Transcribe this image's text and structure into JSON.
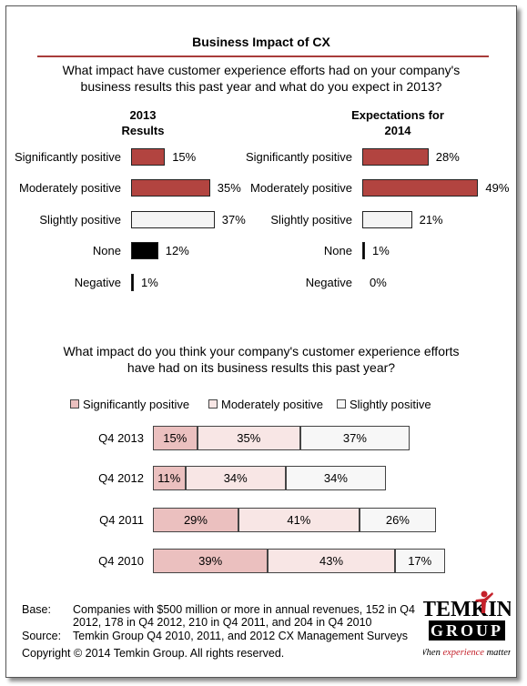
{
  "title": "Business Impact of CX",
  "question1_lines": [
    "What impact have customer experience efforts had on your company's",
    "business results this past year and what do you expect in 2013?"
  ],
  "question2_lines": [
    "What impact do you think your company's customer experience efforts",
    "have had on its business results this past year?"
  ],
  "colors": {
    "significant": "#b24440",
    "moderate": "#b24440",
    "slight": "#f4f4f4",
    "none": "#000000",
    "negative": "#000000",
    "stack_significant": "#ebc0bf",
    "stack_moderate": "#f8e6e5",
    "stack_slight": "#f7f7f7",
    "rule": "#a83c3a"
  },
  "chart_data": [
    {
      "type": "bar",
      "orientation": "horizontal",
      "title_lines": [
        "2013",
        "Results"
      ],
      "categories": [
        "Significantly positive",
        "Moderately positive",
        "Slightly positive",
        "None",
        "Negative"
      ],
      "values": [
        15,
        35,
        37,
        12,
        1
      ],
      "value_labels": [
        "15%",
        "35%",
        "37%",
        "12%",
        "1%"
      ],
      "unit": "%",
      "xlim": [
        0,
        40
      ]
    },
    {
      "type": "bar",
      "orientation": "horizontal",
      "title_lines": [
        "Expectations for",
        "2014"
      ],
      "categories": [
        "Significantly positive",
        "Moderately positive",
        "Slightly positive",
        "None",
        "Negative"
      ],
      "values": [
        28,
        49,
        21,
        1,
        0
      ],
      "value_labels": [
        "28%",
        "49%",
        "21%",
        "1%",
        "0%"
      ],
      "unit": "%",
      "xlim": [
        0,
        49
      ]
    },
    {
      "type": "bar",
      "orientation": "horizontal",
      "stacked": true,
      "categories": [
        "Q4 2013",
        "Q4 2012",
        "Q4 2011",
        "Q4 2010"
      ],
      "series": [
        {
          "name": "Significantly positive",
          "values": [
            15,
            11,
            29,
            39
          ],
          "labels": [
            "15%",
            "11%",
            "29%",
            "39%"
          ]
        },
        {
          "name": "Moderately positive",
          "values": [
            35,
            34,
            41,
            43
          ],
          "labels": [
            "35%",
            "34%",
            "41%",
            "43%"
          ]
        },
        {
          "name": "Slightly positive",
          "values": [
            37,
            34,
            26,
            17
          ],
          "labels": [
            "37%",
            "34%",
            "26%",
            "17%"
          ]
        }
      ],
      "legend": "top"
    }
  ],
  "footnote": {
    "base_label": "Base:",
    "base_lines": [
      "Companies with $500 million or more in annual revenues, 152 in Q4",
      "2012, 178 in Q4 2012, 210 in Q4 2011, and 204 in Q4 2010"
    ],
    "source_label": "Source:",
    "source_text": "Temkin Group Q4 2010, 2011, and 2012 CX Management Surveys",
    "copyright": "Copyright © 2014 Temkin Group. All rights reserved."
  },
  "logo": {
    "text_top": "TEMKIN",
    "text_bottom": "GROUP",
    "tagline_pre": "When ",
    "tagline_accent": "experience",
    "tagline_post": " matters"
  }
}
